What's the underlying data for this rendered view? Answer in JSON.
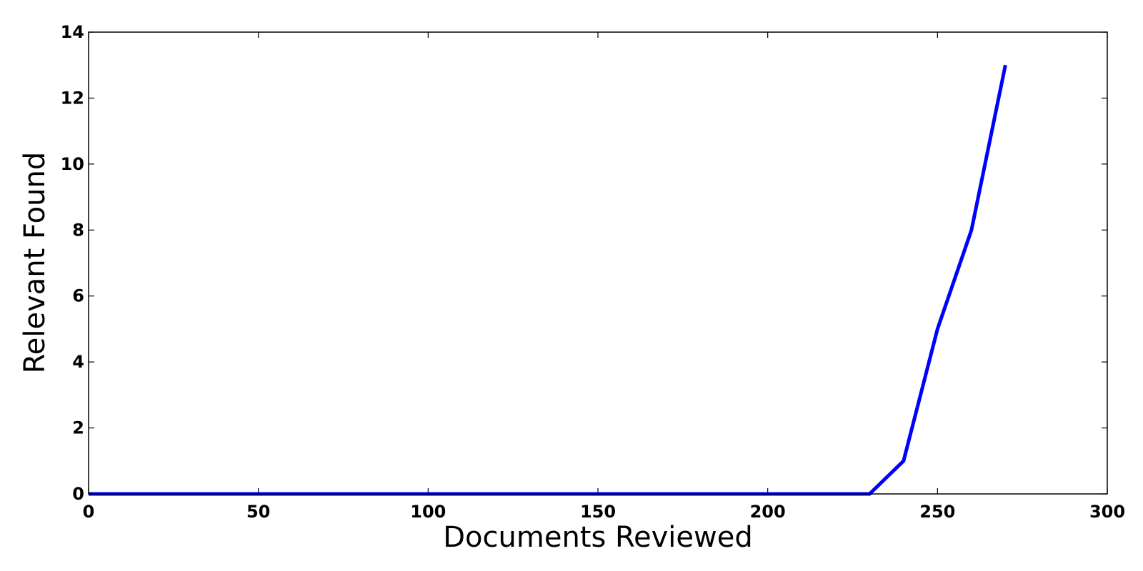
{
  "chart_data": {
    "type": "line",
    "title": "",
    "xlabel": "Documents Reviewed",
    "ylabel": "Relevant Found",
    "xlim": [
      0,
      300
    ],
    "ylim": [
      0,
      14
    ],
    "x_ticks": [
      "0",
      "50",
      "100",
      "150",
      "200",
      "250",
      "300"
    ],
    "y_ticks": [
      "0",
      "2",
      "4",
      "6",
      "8",
      "10",
      "12",
      "14"
    ],
    "grid": false,
    "legend": "none",
    "series": [
      {
        "color": "#0000ff",
        "x": [
          0,
          10,
          20,
          30,
          40,
          50,
          60,
          70,
          80,
          90,
          100,
          110,
          120,
          130,
          140,
          150,
          160,
          170,
          180,
          190,
          200,
          210,
          220,
          230,
          240,
          250,
          260,
          270
        ],
        "y": [
          0,
          0,
          0,
          0,
          0,
          0,
          0,
          0,
          0,
          0,
          0,
          0,
          0,
          0,
          0,
          0,
          0,
          0,
          0,
          0,
          0,
          0,
          0,
          0,
          1,
          5,
          8,
          13
        ]
      }
    ]
  }
}
